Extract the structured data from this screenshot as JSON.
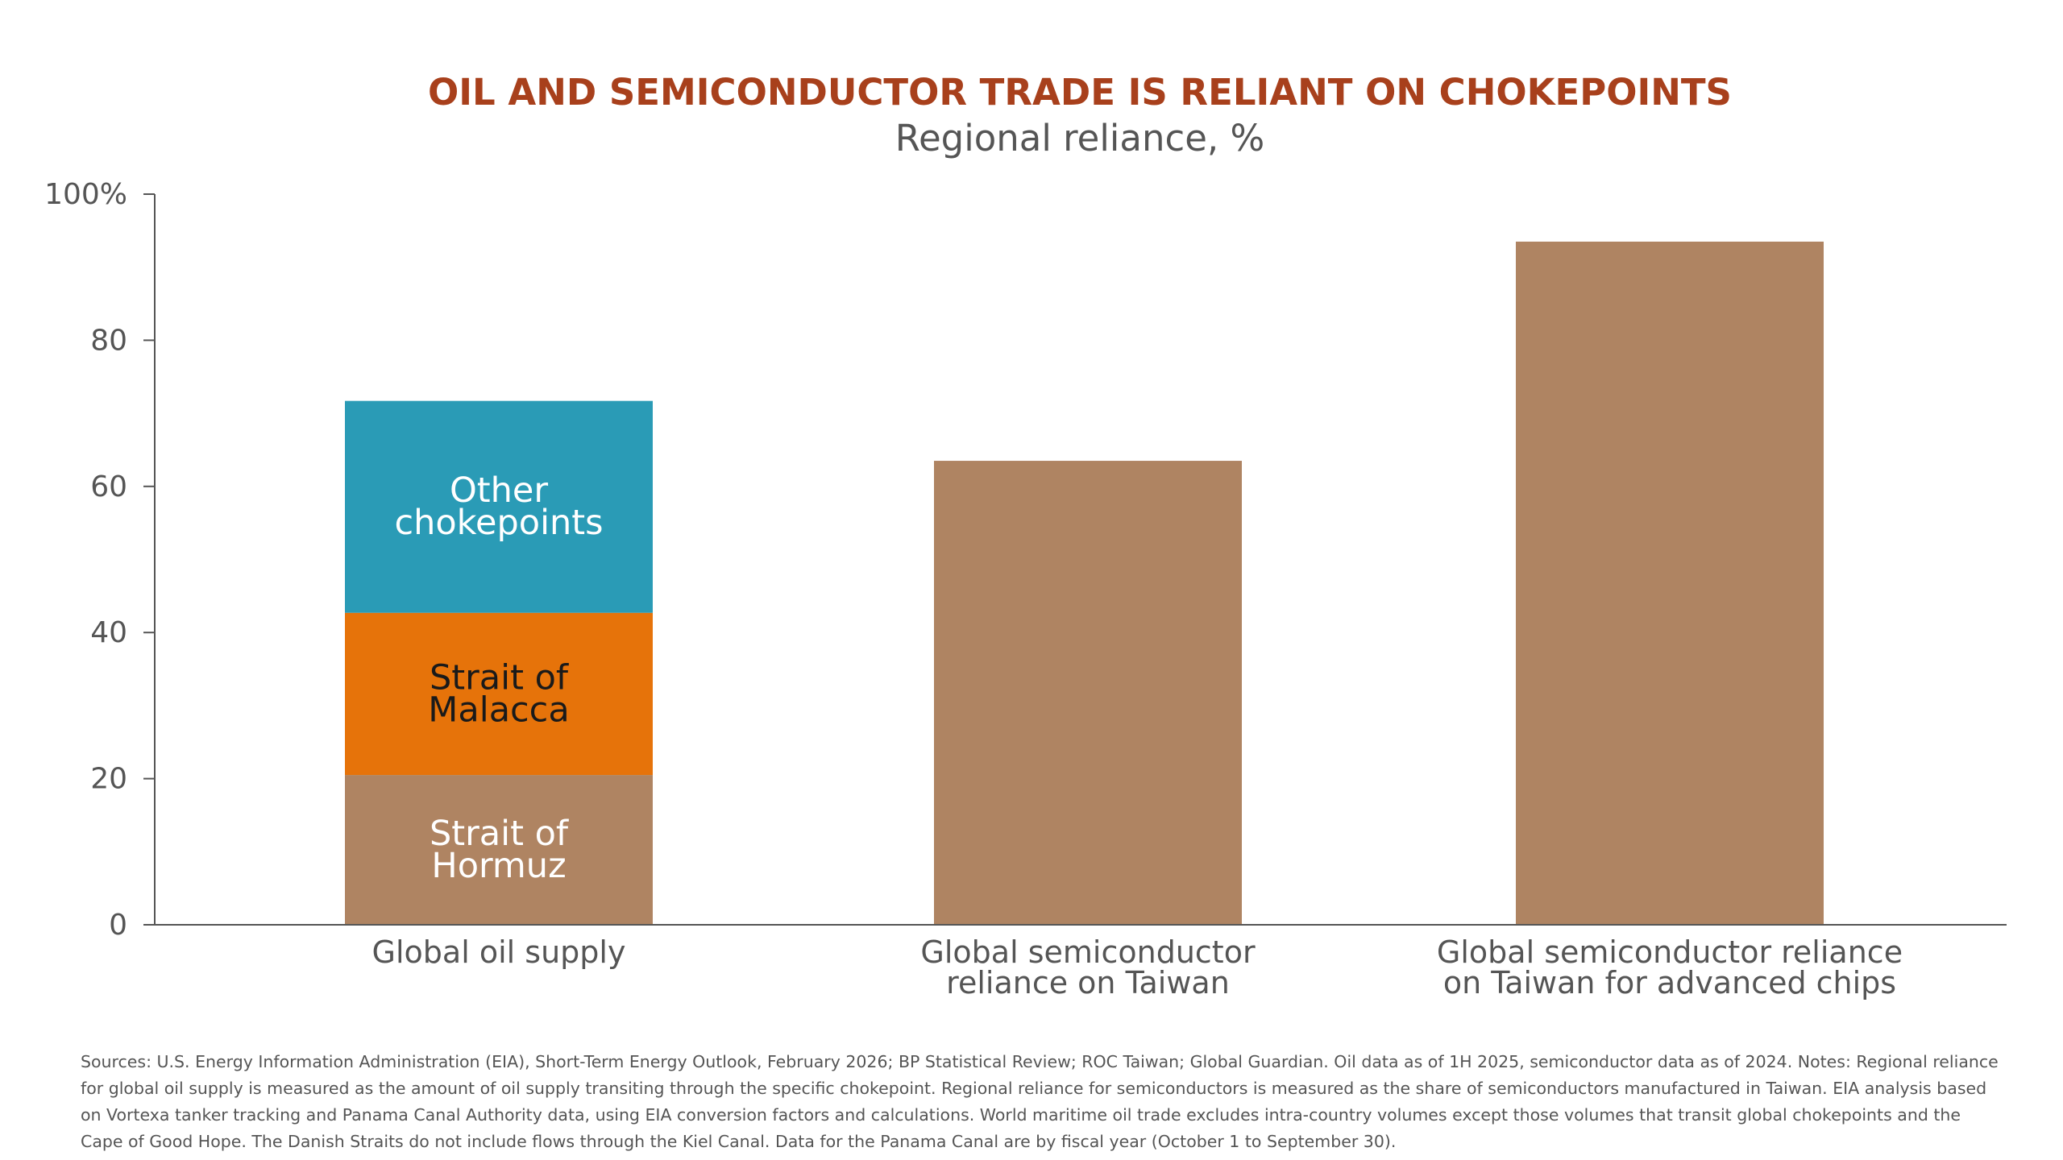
{
  "chart_data": {
    "type": "bar",
    "title": "OIL AND SEMICONDUCTOR TRADE IS RELIANT ON CHOKEPOINTS",
    "subtitle": "Regional reliance, %",
    "ylim": [
      0,
      100
    ],
    "yticks": [
      {
        "value": 0,
        "label": "0"
      },
      {
        "value": 20,
        "label": "20"
      },
      {
        "value": 40,
        "label": "40"
      },
      {
        "value": 60,
        "label": "60"
      },
      {
        "value": 80,
        "label": "80"
      },
      {
        "value": 100,
        "label": "100%"
      }
    ],
    "grid": false,
    "categories": [
      {
        "lines": [
          "Global oil supply"
        ],
        "segments": [
          {
            "name_lines": [
              "Strait of",
              "Hormuz"
            ],
            "value": 20.5,
            "color": "#af8462",
            "label_color": "#ffffff"
          },
          {
            "name_lines": [
              "Strait of",
              "Malacca"
            ],
            "value": 22.2,
            "color": "#e6730a",
            "label_color": "#1a1a1a"
          },
          {
            "name_lines": [
              "Other",
              "chokepoints"
            ],
            "value": 29,
            "color": "#2a9bb6",
            "label_color": "#ffffff"
          }
        ]
      },
      {
        "lines": [
          "Global semiconductor",
          "reliance on Taiwan"
        ],
        "segments": [
          {
            "name_lines": [],
            "value": 63.5,
            "color": "#af8462",
            "label_color": "#ffffff"
          }
        ]
      },
      {
        "lines": [
          "Global semiconductor reliance",
          "on Taiwan for advanced chips"
        ],
        "segments": [
          {
            "name_lines": [],
            "value": 93.5,
            "color": "#af8462",
            "label_color": "#ffffff"
          }
        ]
      }
    ]
  },
  "sources": "Sources: U.S. Energy Information Administration (EIA), Short-Term Energy Outlook, February 2026;  BP Statistical Review; ROC Taiwan; Global Guardian. Oil data as of 1H 2025, semiconductor data as of 2024. Notes: Regional reliance for global oil supply is measured as the amount of oil supply transiting through the specific chokepoint. Regional reliance for semiconductors is measured as the share of semiconductors manufactured in Taiwan. EIA analysis based on Vortexa tanker tracking and Panama Canal Authority data, using EIA conversion factors and calculations. World maritime oil trade excludes intra-country volumes except those volumes that transit global chokepoints and the Cape of Good Hope. The Danish Straits do not include flows through the Kiel Canal. Data for the Panama Canal are by fiscal year (October 1 to September 30)."
}
